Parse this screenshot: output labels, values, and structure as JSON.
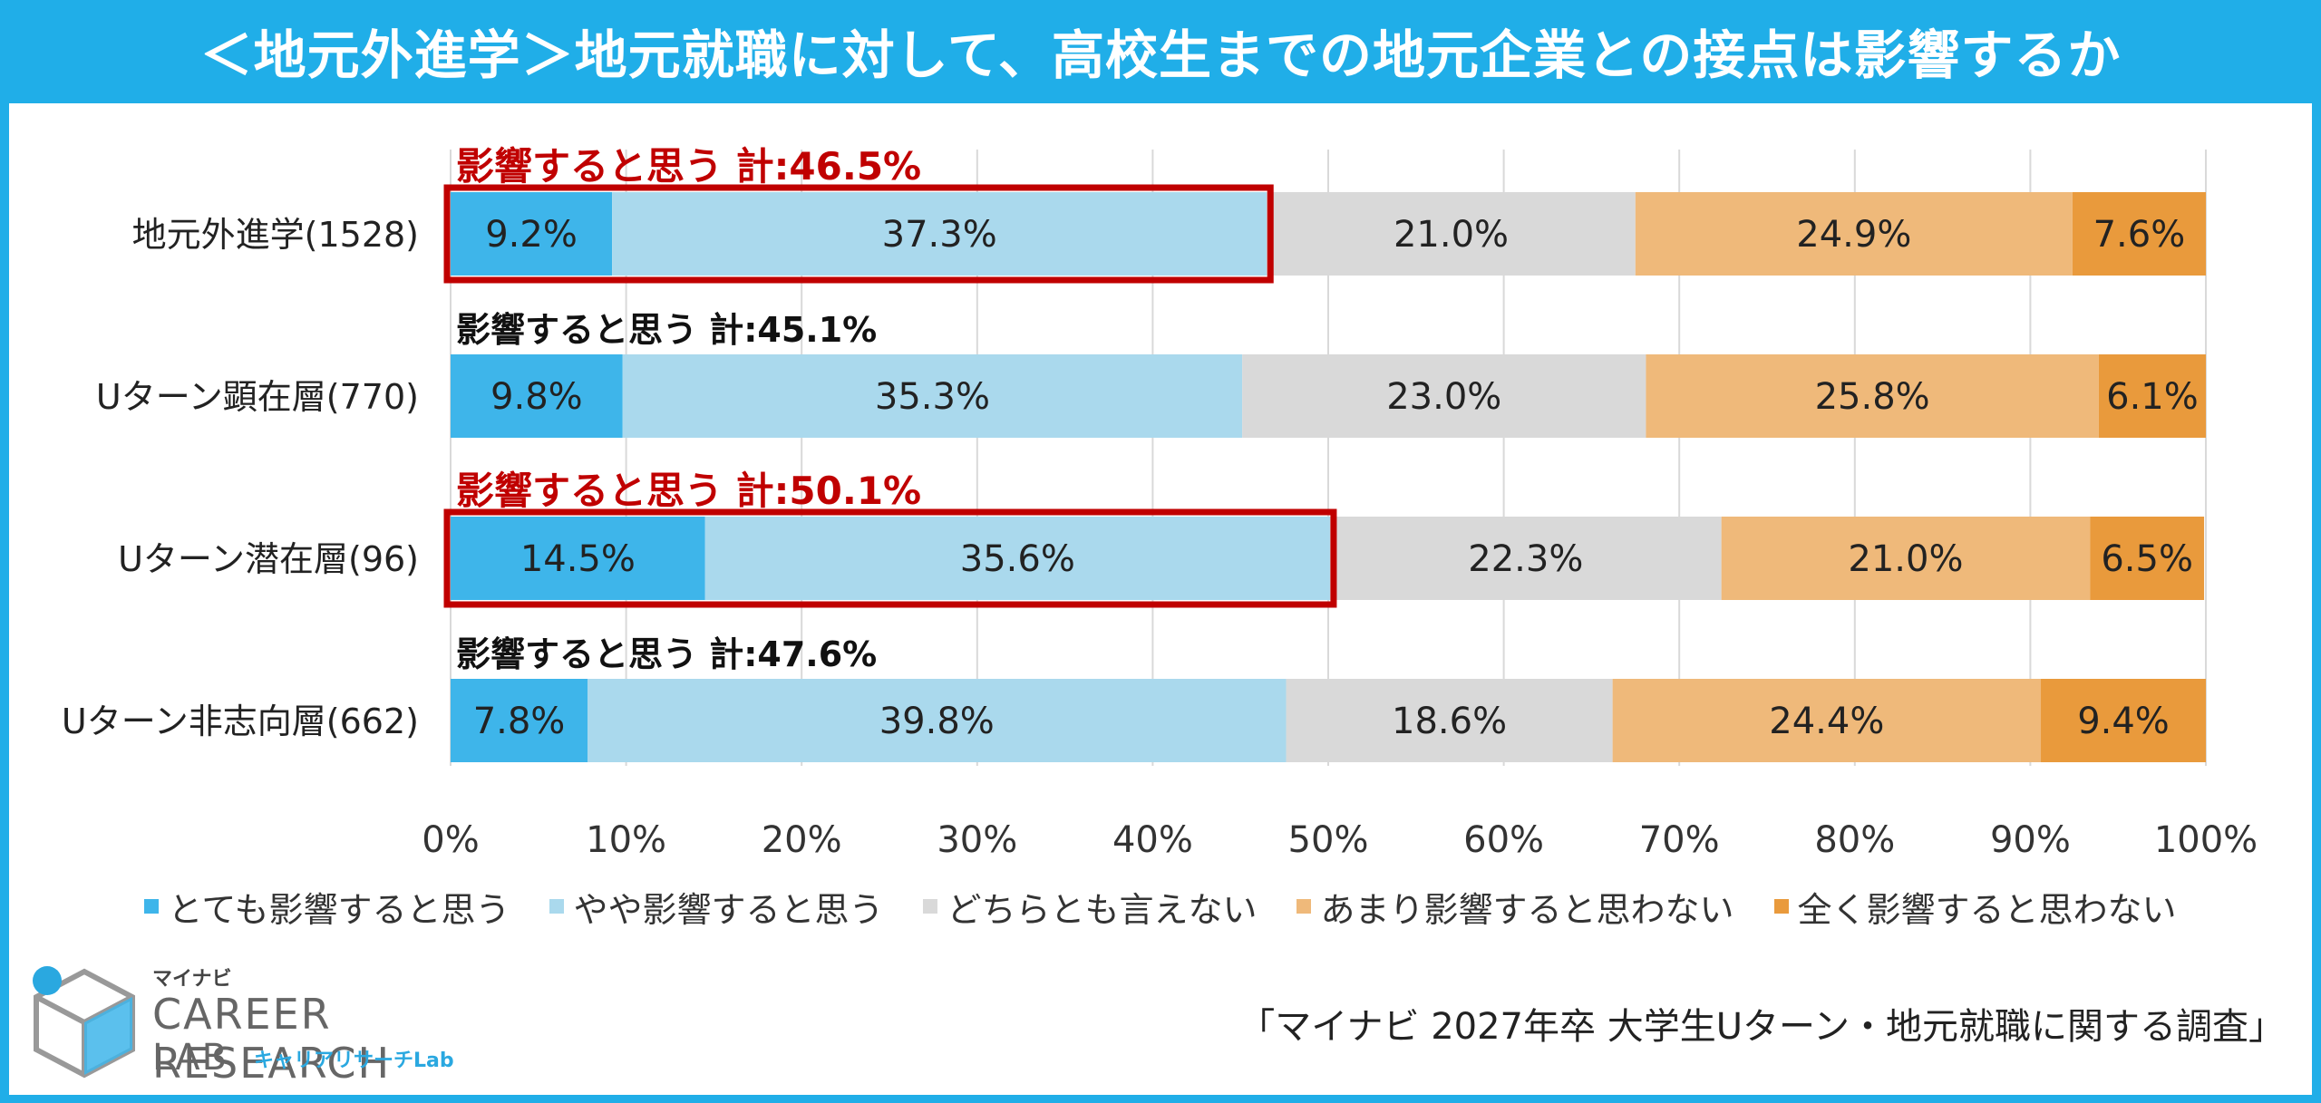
{
  "header": {
    "title": "＜地元外進学＞地元就職に対して、高校生までの地元企業との接点は影響するか"
  },
  "chart_data": {
    "type": "bar",
    "orientation": "horizontal",
    "stacked": true,
    "categories": [
      "地元外進学(1528)",
      "Uターン顕在層(770)",
      "Uターン潜在層(96)",
      "Uターン非志向層(662)"
    ],
    "series": [
      {
        "name": "とても影響すると思う",
        "values": [
          9.2,
          9.8,
          14.5,
          7.8
        ],
        "labels": [
          "9.2%",
          "9.8%",
          "14.5%",
          "7.8%"
        ],
        "color": "#3eb5ea"
      },
      {
        "name": "やや影響すると思う",
        "values": [
          37.3,
          35.3,
          35.6,
          39.8
        ],
        "labels": [
          "37.3%",
          "35.3%",
          "35.6%",
          "39.8%"
        ],
        "color": "#aad9ed"
      },
      {
        "name": "どちらとも言えない",
        "values": [
          21.0,
          23.0,
          22.3,
          18.6
        ],
        "labels": [
          "21.0%",
          "23.0%",
          "22.3%",
          "18.6%"
        ],
        "color": "#d9d9d9"
      },
      {
        "name": "あまり影響すると思わない",
        "values": [
          24.9,
          25.8,
          21.0,
          24.4
        ],
        "labels": [
          "24.9%",
          "25.8%",
          "21.0%",
          "24.4%"
        ],
        "color": "#efb97a"
      },
      {
        "name": "全く影響すると思わない",
        "values": [
          7.6,
          6.1,
          6.5,
          9.4
        ],
        "labels": [
          "7.6%",
          "6.1%",
          "6.5%",
          "9.4%"
        ],
        "color": "#e99a3c"
      }
    ],
    "xlim": [
      0,
      100
    ],
    "xticks": [
      "0%",
      "10%",
      "20%",
      "30%",
      "40%",
      "50%",
      "60%",
      "70%",
      "80%",
      "90%",
      "100%"
    ],
    "grid": true,
    "legend_position": "bottom",
    "annotations": [
      {
        "text": "影響すると思う 計:46.5%",
        "value": 46.5,
        "highlight": true
      },
      {
        "text": "影響すると思う 計:45.1%",
        "value": 45.1,
        "highlight": false
      },
      {
        "text": "影響すると思う 計:50.1%",
        "value": 50.1,
        "highlight": true
      },
      {
        "text": "影響すると思う 計:47.6%",
        "value": 47.6,
        "highlight": false
      }
    ],
    "highlight_color": "#c00000",
    "plain_annotation_color": "#111111"
  },
  "logo": {
    "small": "マイナビ",
    "line1": "CAREER RESEARCH",
    "line2": "LAB",
    "sub": "キャリアリサーチLab",
    "icon": "cube-logo-icon"
  },
  "source": "「マイナビ 2027年卒 大学生Uターン・地元就職に関する調査」"
}
